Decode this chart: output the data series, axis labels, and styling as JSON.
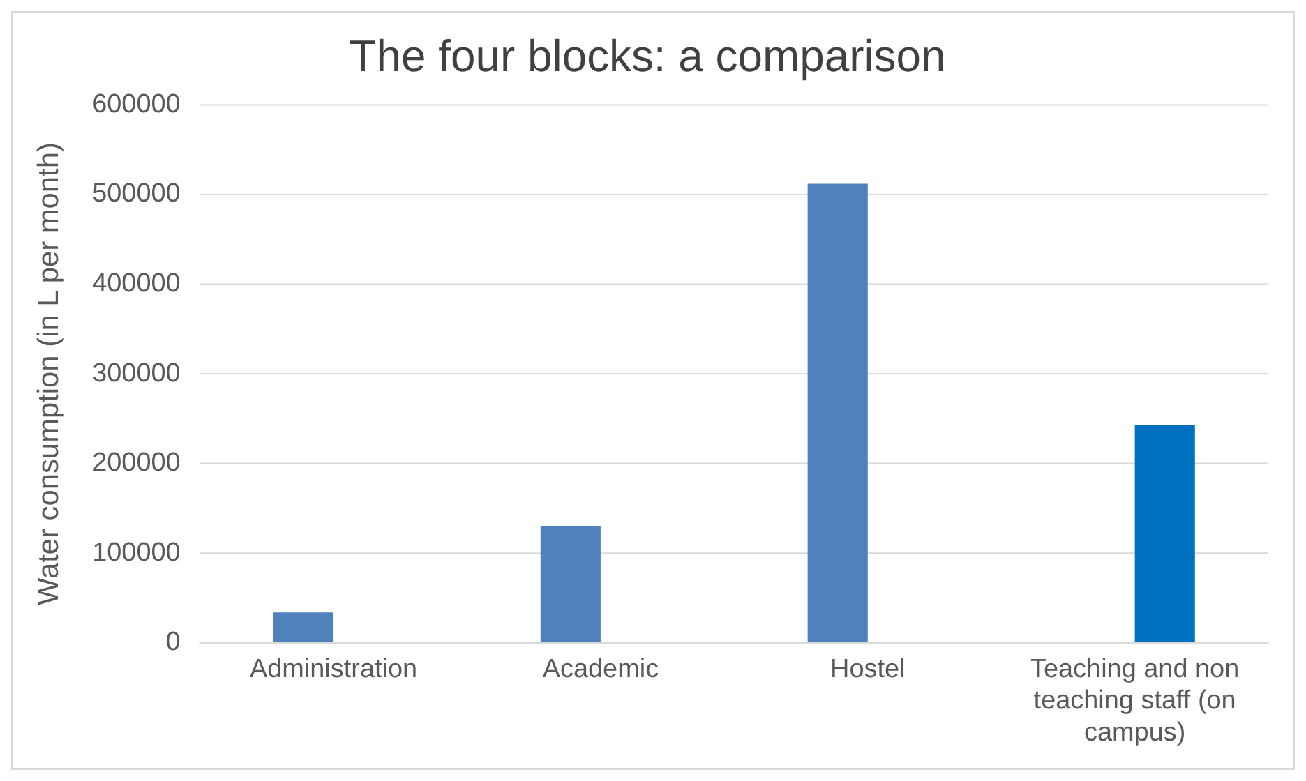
{
  "chart_data": {
    "type": "bar",
    "title": "The four blocks: a comparison",
    "ylabel": "Water consumption (in L per month)",
    "categories": [
      "Administration",
      "Academic",
      "Hostel",
      "Teaching and non teaching staff (on campus)"
    ],
    "series": [
      {
        "color": "#4f81bd",
        "values": [
          34000,
          130000,
          512000,
          null
        ]
      },
      {
        "color": "#0070c0",
        "values": [
          null,
          null,
          null,
          243000
        ]
      }
    ],
    "ylim": [
      0,
      600000
    ],
    "yticks": [
      0,
      100000,
      200000,
      300000,
      400000,
      500000,
      600000
    ],
    "grid": "y",
    "legend": false
  }
}
